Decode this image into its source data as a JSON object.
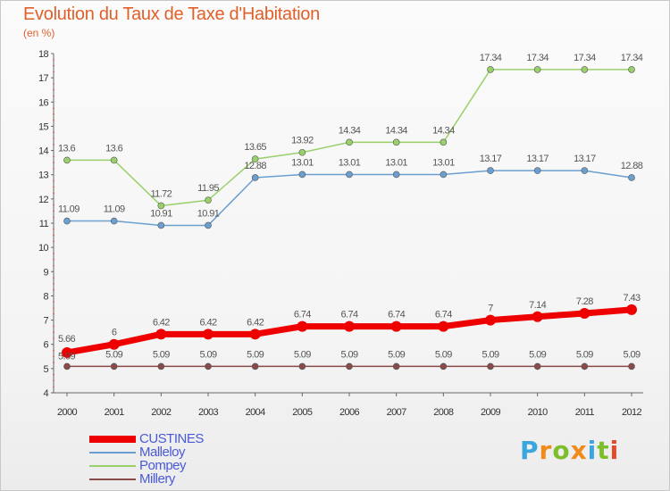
{
  "title": "Evolution du Taux de Taxe d'Habitation",
  "subtitle": "(en %)",
  "logo": {
    "text": "Proxiti",
    "letter_colors": [
      "#3aa6dd",
      "#f08a1c",
      "#7cbf2a",
      "#f08a1c",
      "#3aa6dd",
      "#7cbf2a",
      "#e24a2a"
    ]
  },
  "chart_data": {
    "type": "line",
    "x": [
      "2000",
      "2001",
      "2002",
      "2003",
      "2004",
      "2005",
      "2006",
      "2007",
      "2008",
      "2009",
      "2010",
      "2011",
      "2012"
    ],
    "ylim": [
      4,
      18
    ],
    "yticks": [
      "4",
      "5",
      "6",
      "7",
      "8",
      "9",
      "10",
      "11",
      "12",
      "13",
      "14",
      "15",
      "16",
      "17",
      "18"
    ],
    "grid": false,
    "legend_position": "bottom-left",
    "series": [
      {
        "name": "CUSTINES",
        "color": "#ee0000",
        "values": [
          5.66,
          6,
          6.42,
          6.42,
          6.42,
          6.74,
          6.74,
          6.74,
          6.74,
          7,
          7.14,
          7.28,
          7.43
        ],
        "labels": [
          "5.66",
          "6",
          "6.42",
          "6.42",
          "6.42",
          "6.74",
          "6.74",
          "6.74",
          "6.74",
          "7",
          "7.14",
          "7.28",
          "7.43"
        ]
      },
      {
        "name": "Malleloy",
        "color": "#6a9fd0",
        "values": [
          11.09,
          11.09,
          10.91,
          10.91,
          12.88,
          13.01,
          13.01,
          13.01,
          13.01,
          13.17,
          13.17,
          13.17,
          12.88
        ],
        "labels": [
          "11.09",
          "11.09",
          "10.91",
          "10.91",
          "12.88",
          "13.01",
          "13.01",
          "13.01",
          "13.01",
          "13.17",
          "13.17",
          "13.17",
          "12.88"
        ]
      },
      {
        "name": "Pompey",
        "color": "#9ad06a",
        "values": [
          13.6,
          13.6,
          11.72,
          11.95,
          13.65,
          13.92,
          14.34,
          14.34,
          14.34,
          17.34,
          17.34,
          17.34,
          17.34
        ],
        "labels": [
          "13.6",
          "13.6",
          "11.72",
          "11.95",
          "13.65",
          "13.92",
          "14.34",
          "14.34",
          "14.34",
          "17.34",
          "17.34",
          "17.34",
          "17.34"
        ]
      },
      {
        "name": "Millery",
        "color": "#8a4a4a",
        "values": [
          5.09,
          5.09,
          5.09,
          5.09,
          5.09,
          5.09,
          5.09,
          5.09,
          5.09,
          5.09,
          5.09,
          5.09,
          5.09
        ],
        "labels": [
          "5.09",
          "5.09",
          "5.09",
          "5.09",
          "5.09",
          "5.09",
          "5.09",
          "5.09",
          "5.09",
          "5.09",
          "5.09",
          "5.09",
          "5.09"
        ]
      }
    ]
  }
}
